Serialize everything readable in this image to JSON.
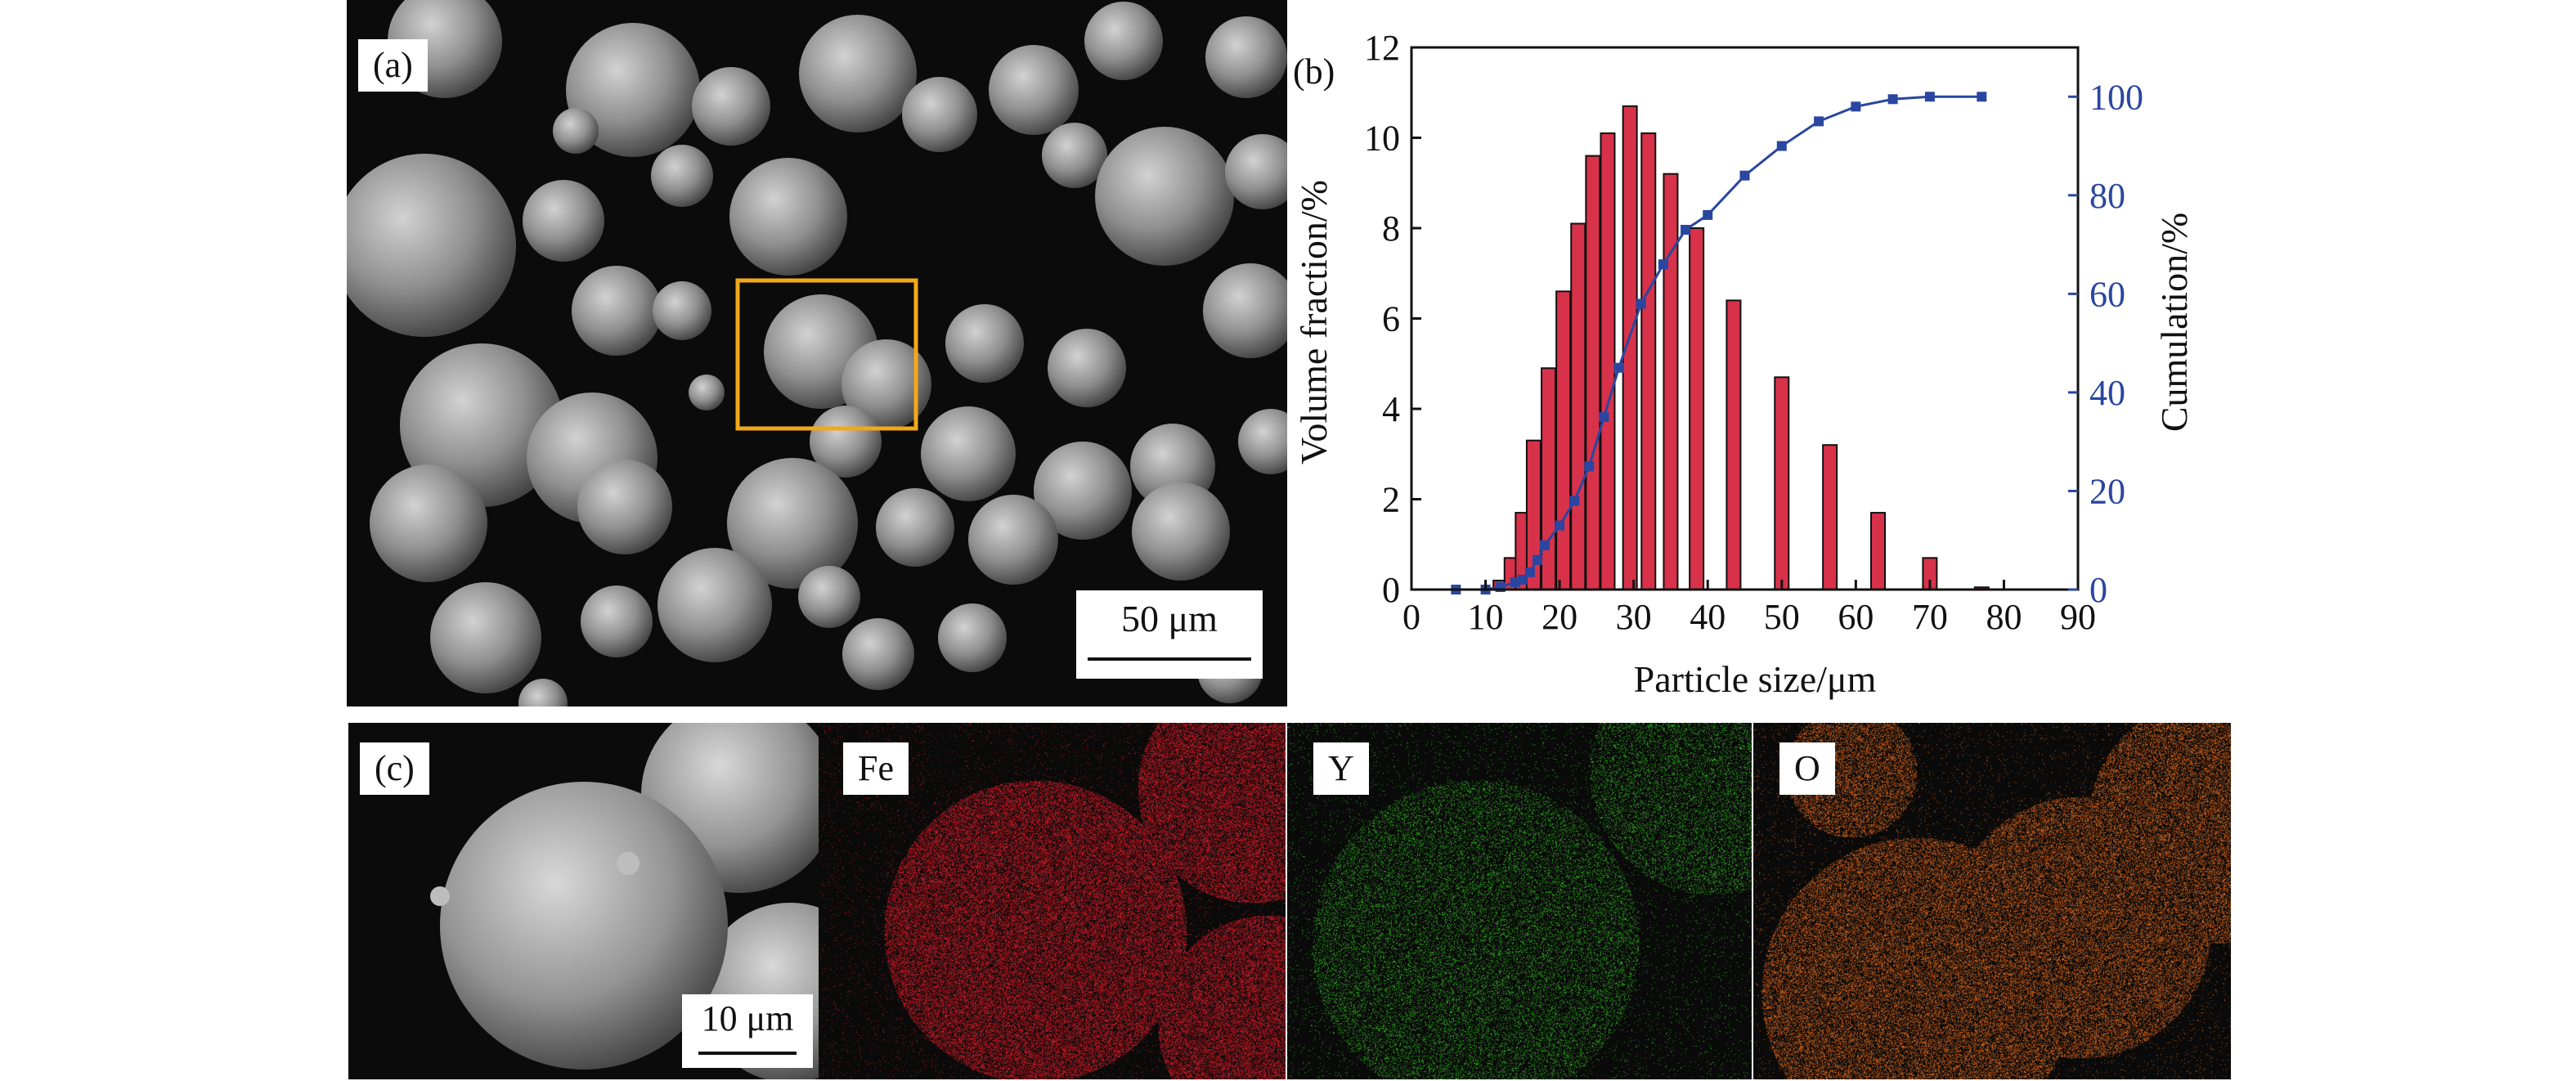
{
  "panel_a": {
    "label": "(a)",
    "scale_bar": "50 μm"
  },
  "panel_b": {
    "label": "(b)"
  },
  "panel_c": {
    "label": "(c)",
    "scale_bar": "10 μm",
    "maps": [
      {
        "label": "Fe",
        "color": "#d21e2a"
      },
      {
        "label": "Y",
        "color": "#35c424"
      },
      {
        "label": "O",
        "color": "#e06a20"
      }
    ]
  },
  "chart_data": {
    "type": "bar",
    "xlabel": "Particle size/μm",
    "ylabel": "Volume fraction/%",
    "y2label": "Cumulation/%",
    "xlim": [
      0,
      90
    ],
    "ylim": [
      0,
      12
    ],
    "y2lim": [
      0,
      110
    ],
    "xticks": [
      0,
      10,
      20,
      30,
      40,
      50,
      60,
      70,
      80,
      90
    ],
    "yticks": [
      0,
      2,
      4,
      6,
      8,
      10,
      12
    ],
    "y2ticks": [
      0,
      20,
      40,
      60,
      80,
      100
    ],
    "bar_color": "#d8324a",
    "line_color": "#2a46a0",
    "series": [
      {
        "type": "bar",
        "x": [
          12,
          13.5,
          15,
          16.5,
          18.5,
          20.5,
          22.5,
          24.5,
          26.5,
          29.5,
          32,
          35,
          38.5,
          43.5,
          50,
          56.5,
          63,
          70,
          77
        ],
        "values": [
          0.2,
          0.7,
          1.7,
          3.3,
          4.9,
          6.6,
          8.1,
          9.6,
          10.1,
          10.7,
          10.1,
          9.2,
          8.0,
          6.4,
          4.7,
          3.2,
          1.7,
          0.7,
          0.05
        ]
      },
      {
        "type": "line",
        "x": [
          6,
          10,
          12,
          14,
          15,
          16,
          17,
          18,
          20,
          22,
          24,
          26,
          28,
          31,
          34,
          37,
          40,
          45,
          50,
          55,
          60,
          65,
          70,
          77
        ],
        "values": [
          0,
          0,
          0.5,
          1.5,
          2,
          3.5,
          6,
          9,
          13,
          18,
          25,
          35,
          45,
          58,
          66,
          73,
          76,
          84,
          90,
          95,
          98,
          99.5,
          100,
          100
        ]
      }
    ]
  }
}
